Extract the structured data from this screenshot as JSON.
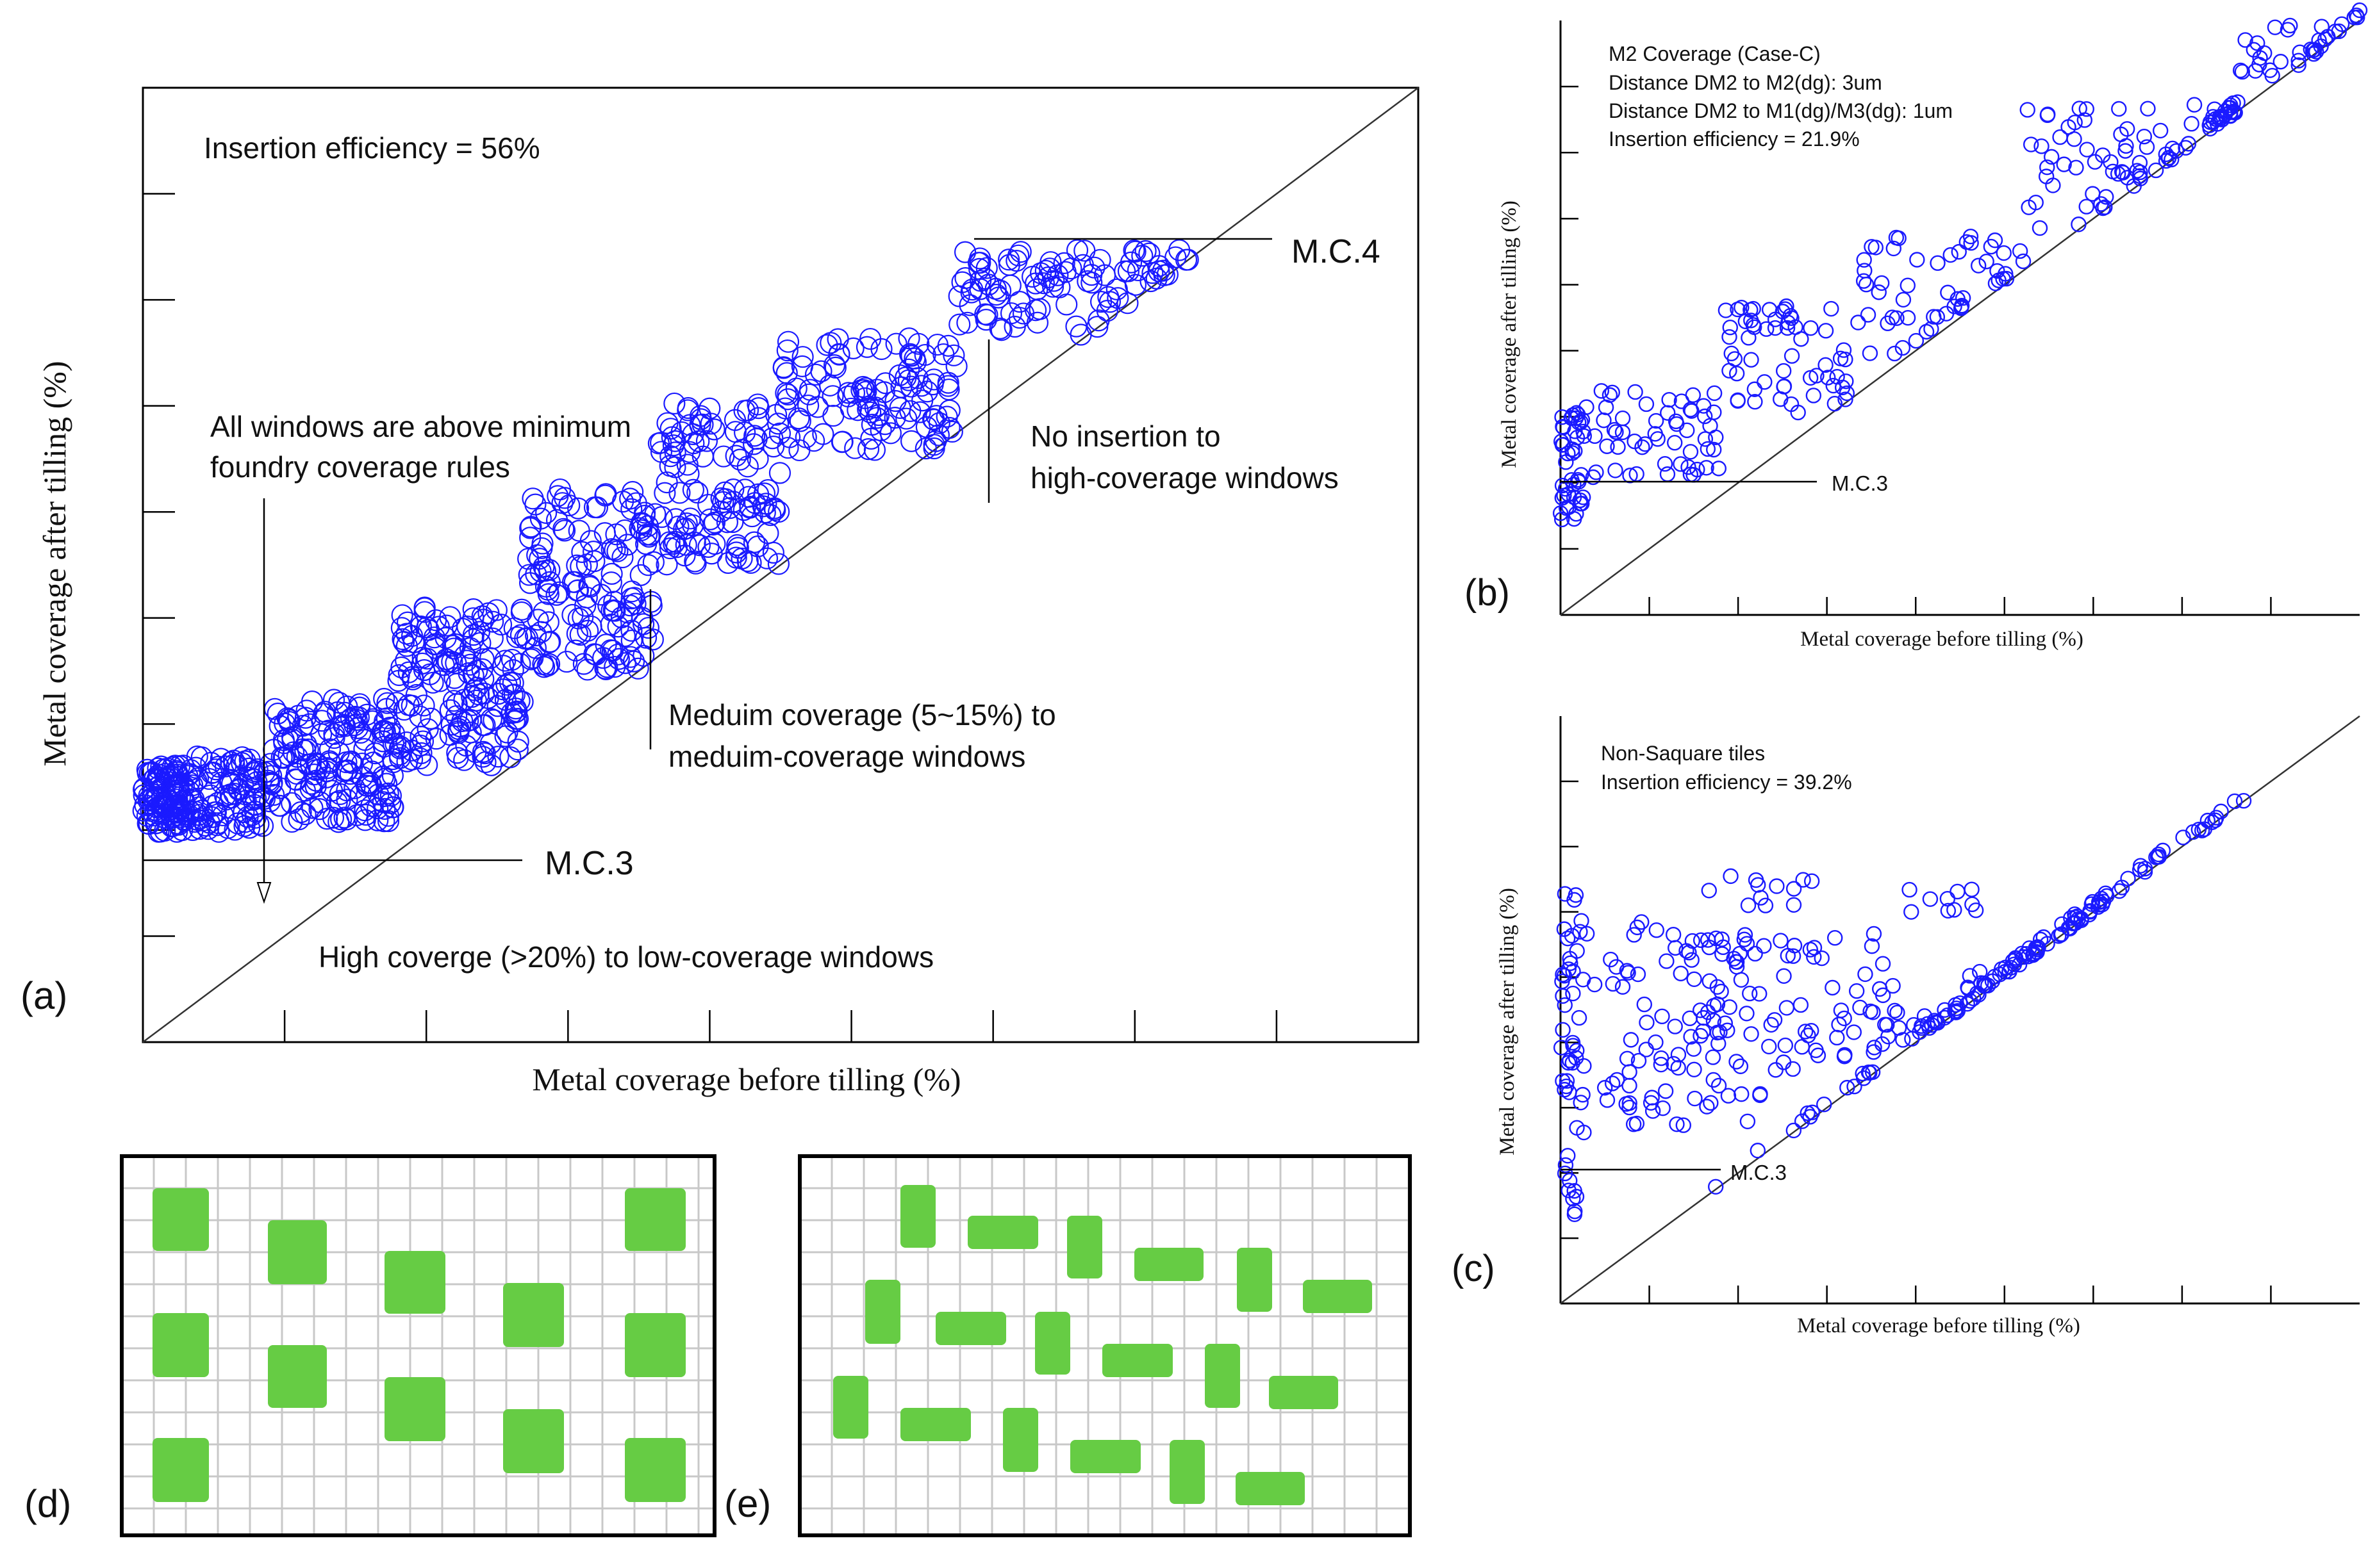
{
  "chart_data": [
    {
      "id": "a",
      "type": "scatter",
      "panel_label": "(a)",
      "xlabel": "Metal coverage before tilling (%)",
      "ylabel": "Metal coverage after tilling (%)",
      "xlim": [
        0,
        10
      ],
      "ylim": [
        0,
        10
      ],
      "diagonal": true,
      "annotations": {
        "efficiency": "Insertion efficiency = 56%",
        "windows_line1": "All windows are above minimum",
        "windows_line2": "foundry coverage rules",
        "mc4": "M.C.4",
        "no_insertion_line1": "No insertion to",
        "no_insertion_line2": "high-coverage windows",
        "medium_line1": "Meduim coverage (5~15%) to",
        "medium_line2": "meduim-coverage windows",
        "mc3": "M.C.3",
        "high": "High coverge (>20%) to low-coverage windows"
      },
      "mc3_level": 1.9,
      "mc4_level": 8.2,
      "series": [
        {
          "name": "windows",
          "color": "#1a1aff",
          "bands": [
            {
              "x0": 0.0,
              "x1": 0.4,
              "ylo": 2.2,
              "yhi": 2.9,
              "n": 120
            },
            {
              "x0": 0.4,
              "x1": 1.0,
              "ylo": 2.2,
              "yhi": 3.0,
              "n": 90
            },
            {
              "x0": 1.0,
              "x1": 2.0,
              "ylo": 2.3,
              "yhi": 3.6,
              "n": 170
            },
            {
              "x0": 2.0,
              "x1": 3.0,
              "ylo": 2.9,
              "yhi": 4.6,
              "n": 170
            },
            {
              "x0": 3.0,
              "x1": 4.0,
              "ylo": 3.9,
              "yhi": 5.8,
              "n": 150
            },
            {
              "x0": 4.0,
              "x1": 5.0,
              "ylo": 5.0,
              "yhi": 6.7,
              "n": 130
            },
            {
              "x0": 5.0,
              "x1": 6.4,
              "ylo": 6.2,
              "yhi": 7.4,
              "n": 120
            },
            {
              "x0": 6.4,
              "x1": 8.2,
              "ylo": 7.4,
              "yhi": 8.3,
              "n": 100
            }
          ]
        }
      ]
    },
    {
      "id": "b",
      "type": "scatter",
      "panel_label": "(b)",
      "xlabel": "Metal coverage before tilling (%)",
      "ylabel": "Metal coverage after tilling (%)",
      "xlim": [
        0,
        10
      ],
      "ylim": [
        0,
        10
      ],
      "diagonal": true,
      "annotations": {
        "line1": "M2 Coverage (Case-C)",
        "line2": "Distance DM2 to M2(dg): 3um",
        "line3": "Distance DM2 to M1(dg)/M3(dg): 1um",
        "line4": "Insertion efficiency = 21.9%",
        "mc3": "M.C.3"
      },
      "mc3_level": 2.3,
      "series": [
        {
          "name": "windows",
          "color": "#1a1aff",
          "bands": [
            {
              "x0": 0.0,
              "x1": 0.3,
              "ylo": 1.6,
              "yhi": 3.4,
              "n": 45
            },
            {
              "x0": 0.3,
              "x1": 2.0,
              "ylo": 2.3,
              "yhi": 3.8,
              "n": 55
            },
            {
              "x0": 2.0,
              "x1": 3.6,
              "ylo": 3.4,
              "yhi": 5.2,
              "n": 60
            },
            {
              "x0": 3.6,
              "x1": 5.8,
              "ylo": 4.2,
              "yhi": 6.4,
              "n": 55
            },
            {
              "x0": 5.8,
              "x1": 8.5,
              "ylo": 6.2,
              "yhi": 8.6,
              "n": 90
            },
            {
              "x0": 8.5,
              "x1": 10.0,
              "ylo": 8.5,
              "yhi": 10.0,
              "n": 35
            }
          ]
        }
      ]
    },
    {
      "id": "c",
      "type": "scatter",
      "panel_label": "(c)",
      "xlabel": "Metal coverage before tilling (%)",
      "ylabel": "Metal coverage after tilling (%)",
      "xlim": [
        0,
        10
      ],
      "ylim": [
        0,
        10
      ],
      "diagonal": true,
      "annotations": {
        "line1": "Non-Saquare tiles",
        "line2": "Insertion efficiency = 39.2%",
        "mc3": "M.C.3"
      },
      "mc3_level": 2.2,
      "series": [
        {
          "name": "windows",
          "color": "#1a1aff",
          "bands": [
            {
              "x0": 0.0,
              "x1": 0.3,
              "ylo": 1.5,
              "yhi": 7.0,
              "n": 50
            },
            {
              "x0": 0.3,
              "x1": 1.5,
              "ylo": 3.0,
              "yhi": 6.6,
              "n": 35
            },
            {
              "x0": 1.5,
              "x1": 4.3,
              "ylo": 4.3,
              "yhi": 6.3,
              "n": 90
            },
            {
              "x0": 1.8,
              "x1": 3.5,
              "ylo": 6.6,
              "yhi": 7.3,
              "n": 12
            },
            {
              "x0": 4.3,
              "x1": 5.2,
              "ylo": 6.6,
              "yhi": 7.1,
              "n": 10
            },
            {
              "x0": 0.7,
              "x1": 3.0,
              "ylo": 3.0,
              "yhi": 4.2,
              "n": 30
            },
            {
              "x0": 3.2,
              "x1": 7.6,
              "ylo": 3.4,
              "yhi": 5.0,
              "n": 75
            },
            {
              "x0": 5.0,
              "x1": 7.0,
              "ylo": 5.0,
              "yhi": 5.7,
              "n": 30
            },
            {
              "x0": 1.8,
              "x1": 6.6,
              "ylo": 1.8,
              "yhi": 6.6,
              "n": 30,
              "onDiag": true
            },
            {
              "x0": 7.6,
              "x1": 8.6,
              "ylo": 7.6,
              "yhi": 8.6,
              "n": 12,
              "onDiag": true
            }
          ]
        }
      ]
    }
  ],
  "tile_panels": [
    {
      "id": "d",
      "label": "(d)",
      "tile_color": "#66cc44"
    },
    {
      "id": "e",
      "label": "(e)",
      "tile_color": "#66cc44"
    }
  ]
}
